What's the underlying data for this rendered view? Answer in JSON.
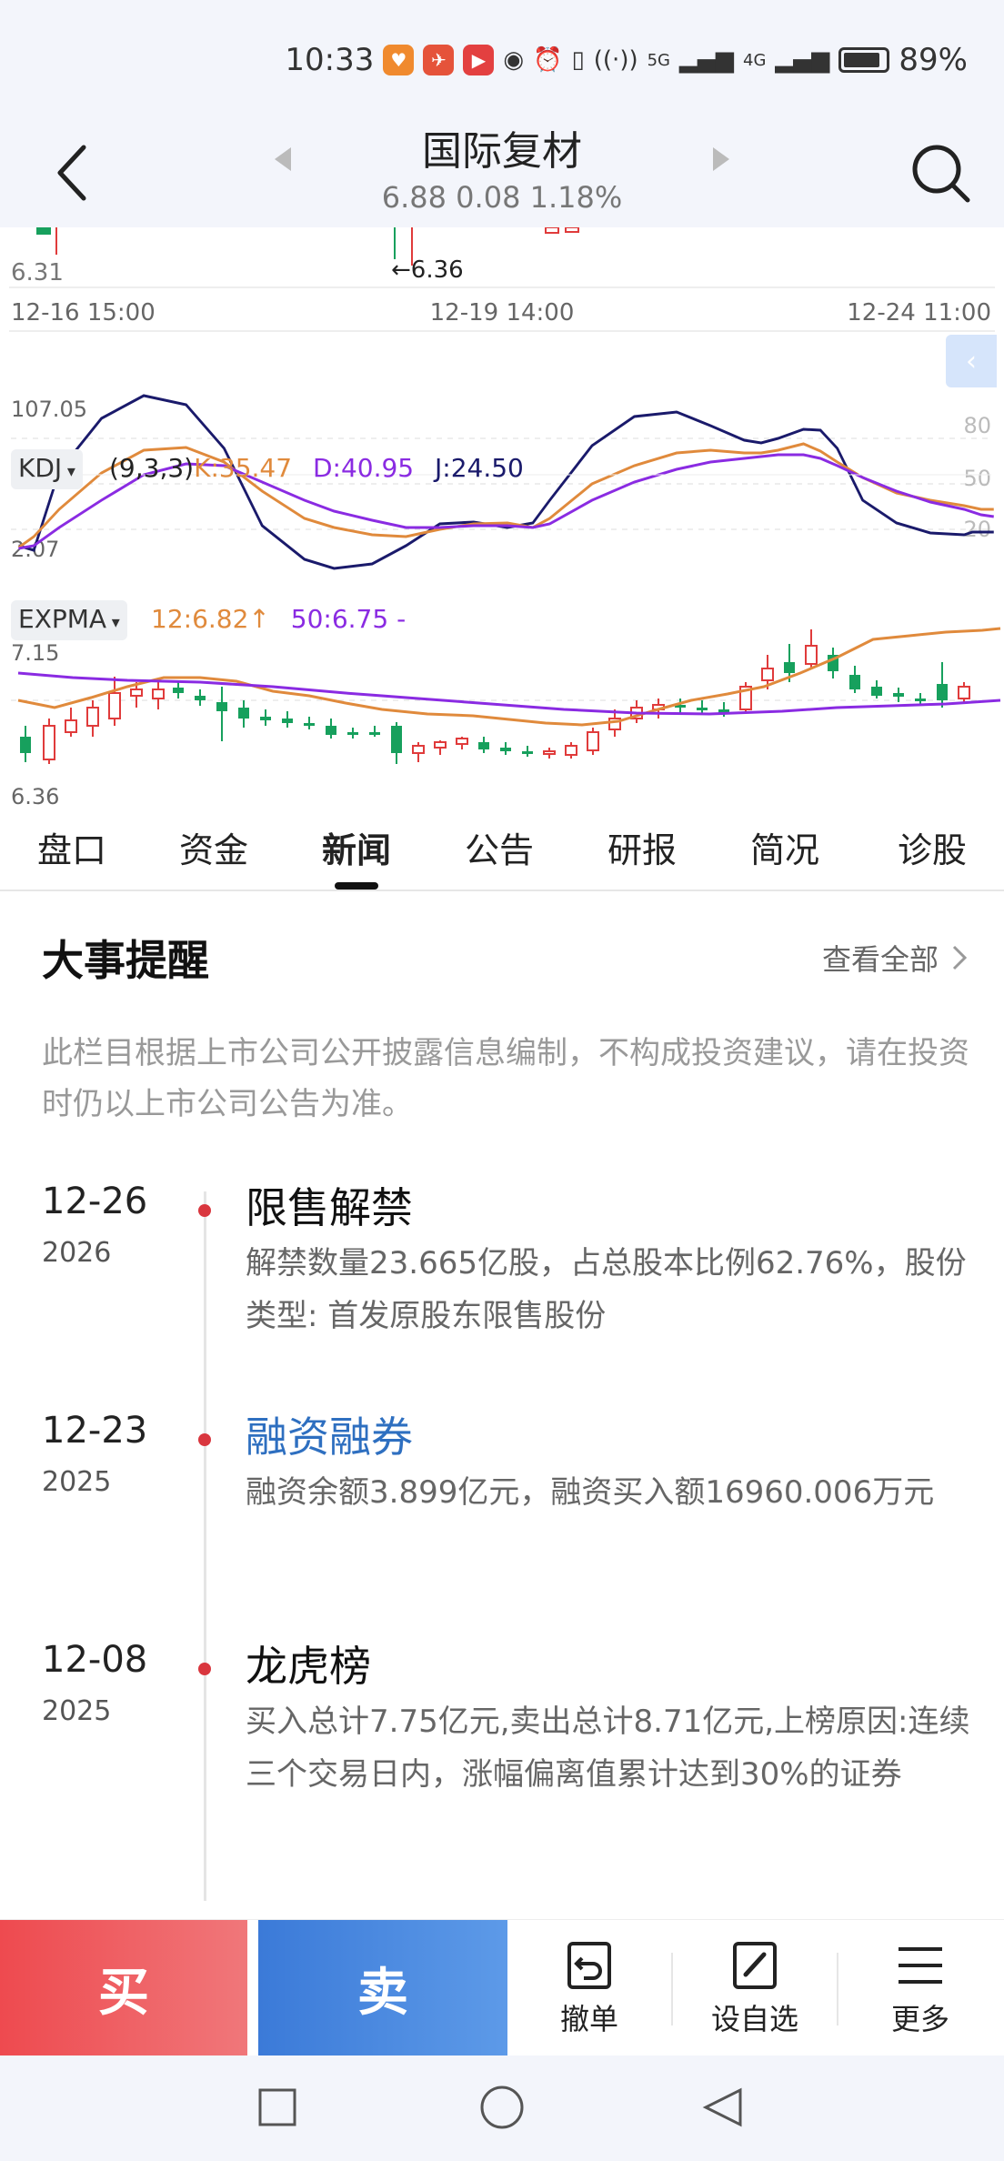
{
  "status_bar": {
    "time": "10:33",
    "battery": "89%",
    "battery_level": 0.89,
    "net1": "5G",
    "net2": "4G"
  },
  "header": {
    "title": "国际复材",
    "quote": "6.88 0.08 1.18%"
  },
  "chart": {
    "top_low_label": "6.31",
    "arrow_label": "←6.36",
    "time_labels": [
      "12-16 15:00",
      "12-19 14:00",
      "12-24 11:00"
    ],
    "kdj": {
      "selector": "KDJ",
      "params": "(9,3,3)",
      "k": "K:35.47",
      "d": "D:40.95",
      "j": "J:24.50",
      "y_max": "107.05",
      "y_min": "2.07",
      "levels": [
        "80",
        "50",
        "20"
      ]
    },
    "expma": {
      "selector": "EXPMA",
      "ma12": "12:6.82",
      "ma12_arrow": "↑",
      "ma50": "50:6.75",
      "ma50_suffix": "-",
      "y_max": "7.15",
      "y_min": "6.36"
    },
    "colors": {
      "up": "#e03b3b",
      "down": "#17a05d",
      "k": "#e08a3c",
      "d": "#8a2be2",
      "j": "#1a1a6b"
    }
  },
  "tabs": [
    "盘口",
    "资金",
    "新闻",
    "公告",
    "研报",
    "简况",
    "诊股"
  ],
  "active_tab": "新闻",
  "events": {
    "title": "大事提醒",
    "view_all": "查看全部",
    "disclaimer": "此栏目根据上市公司公开披露信息编制，不构成投资建议，请在投资时仍以上市公司公告为准。",
    "items": [
      {
        "date": "12-26",
        "year": "2026",
        "title": "限售解禁",
        "body": "解禁数量23.665亿股，占总股本比例62.76%，股份类型: 首发原股东限售股份"
      },
      {
        "date": "12-23",
        "year": "2025",
        "title": "融资融券",
        "body": "融资余额3.899亿元，融资买入额16960.006万元"
      },
      {
        "date": "12-08",
        "year": "2025",
        "title": "龙虎榜",
        "body": "买入总计7.75亿元,卖出总计8.71亿元,上榜原因:连续三个交易日内，涨幅偏离值累计达到30%的证券"
      }
    ]
  },
  "bottom": {
    "buy": "买",
    "sell": "卖",
    "cancel": "撤单",
    "watchlist": "设自选",
    "more": "更多"
  }
}
